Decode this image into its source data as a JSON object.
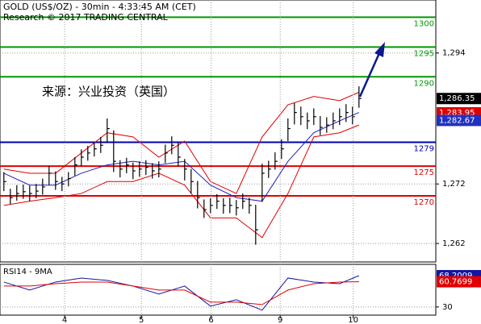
{
  "chart_data": [
    {
      "type": "ohlc",
      "title": "GOLD (US$/OZ) - 30min - 4:33:45 AM (CET)",
      "subtitle": "Research © 2017 TRADING CENTRAL",
      "annotation": "来源：兴业投资（英国）",
      "color": "#000000",
      "xlim": [
        -0.6,
        66.9
      ],
      "ylim": [
        1258.9,
        1302.9
      ],
      "yticks": [
        {
          "value": 1262,
          "label": "1,262"
        },
        {
          "value": 1272,
          "label": "1,272"
        },
        {
          "value": 1294,
          "label": "1,294"
        }
      ],
      "grid": true,
      "x": [
        0,
        1,
        2,
        3,
        4,
        5,
        6,
        7,
        8,
        9,
        10,
        11,
        12,
        13,
        14,
        15,
        16,
        17,
        18,
        19,
        20,
        21,
        22,
        23,
        24,
        25,
        26,
        27,
        28,
        29,
        30,
        31,
        32,
        33,
        34,
        35,
        36,
        37,
        38,
        39,
        40,
        41,
        42,
        43,
        44,
        45,
        46,
        47,
        48,
        49,
        50,
        51,
        52,
        53,
        54,
        55
      ],
      "high": [
        1274.0,
        1271.2,
        1271.8,
        1271.9,
        1271.7,
        1272.0,
        1272.9,
        1275.0,
        1274.1,
        1273.2,
        1274.0,
        1276.5,
        1277.8,
        1278.4,
        1279.0,
        1279.9,
        1283.0,
        1281.0,
        1276.0,
        1276.4,
        1275.6,
        1275.8,
        1276.0,
        1275.5,
        1275.8,
        1278.6,
        1280.0,
        1278.9,
        1276.2,
        1274.5,
        1272.5,
        1269.4,
        1269.6,
        1270.3,
        1269.6,
        1269.7,
        1269.3,
        1270.4,
        1269.7,
        1268.5,
        1275.4,
        1275.9,
        1277.3,
        1279.5,
        1283.0,
        1285.6,
        1285.0,
        1284.0,
        1284.7,
        1283.4,
        1283.2,
        1284.0,
        1284.7,
        1285.4,
        1285.0,
        1288.4
      ],
      "low": [
        1270.8,
        1268.6,
        1269.2,
        1269.5,
        1269.1,
        1269.6,
        1270.2,
        1271.8,
        1271.0,
        1270.8,
        1271.6,
        1273.4,
        1275.0,
        1275.9,
        1276.6,
        1277.2,
        1278.9,
        1274.0,
        1273.1,
        1273.8,
        1272.8,
        1273.2,
        1273.5,
        1272.9,
        1273.1,
        1275.5,
        1277.0,
        1275.0,
        1272.6,
        1270.4,
        1267.9,
        1266.3,
        1267.1,
        1267.8,
        1267.0,
        1267.1,
        1266.7,
        1267.8,
        1267.0,
        1261.8,
        1269.0,
        1273.0,
        1274.4,
        1276.2,
        1279.2,
        1282.0,
        1281.9,
        1281.2,
        1281.9,
        1280.2,
        1280.6,
        1281.2,
        1281.9,
        1282.4,
        1282.0,
        1284.8
      ],
      "close": [
        1272.4,
        1269.7,
        1270.4,
        1270.7,
        1270.4,
        1270.8,
        1271.5,
        1273.8,
        1272.4,
        1272.0,
        1272.9,
        1275.2,
        1276.5,
        1277.2,
        1277.9,
        1278.5,
        1281.3,
        1275.8,
        1274.5,
        1275.2,
        1274.2,
        1274.5,
        1274.8,
        1274.2,
        1274.5,
        1277.2,
        1278.5,
        1276.5,
        1274.5,
        1272.4,
        1269.7,
        1267.7,
        1268.4,
        1269.1,
        1268.4,
        1268.4,
        1268.0,
        1269.1,
        1268.4,
        1264.3,
        1273.8,
        1274.5,
        1275.8,
        1277.9,
        1281.3,
        1284.0,
        1283.3,
        1282.6,
        1283.3,
        1281.5,
        1281.9,
        1282.6,
        1283.3,
        1284.0,
        1283.3,
        1286.35
      ],
      "overlays": [
        {
          "color": "#e00000",
          "x": [
            0,
            4,
            8,
            12,
            16,
            20,
            24,
            28,
            32,
            36,
            40,
            44,
            48,
            52,
            55
          ],
          "values": [
            1274.5,
            1273.8,
            1273.8,
            1277.2,
            1280.6,
            1279.9,
            1276.5,
            1279.2,
            1272.4,
            1270.4,
            1279.9,
            1285.3,
            1286.7,
            1286.0,
            1287.4
          ]
        },
        {
          "color": "#e00000",
          "x": [
            0,
            4,
            8,
            12,
            16,
            20,
            24,
            28,
            32,
            36,
            40,
            44,
            48,
            52,
            55
          ],
          "values": [
            1268.4,
            1269.1,
            1269.7,
            1270.4,
            1272.4,
            1272.4,
            1273.8,
            1271.8,
            1266.3,
            1266.3,
            1263.0,
            1270.4,
            1279.9,
            1280.6,
            1281.9
          ]
        },
        {
          "color": "#2020c0",
          "x": [
            0,
            4,
            8,
            12,
            16,
            20,
            24,
            28,
            32,
            36,
            40,
            44,
            48,
            52,
            55
          ],
          "values": [
            1273.8,
            1271.8,
            1271.8,
            1273.8,
            1275.2,
            1275.8,
            1275.2,
            1275.8,
            1271.8,
            1269.7,
            1269.1,
            1275.8,
            1280.6,
            1282.6,
            1284.0
          ]
        }
      ],
      "levels": [
        {
          "value": 1300,
          "color": "#009900"
        },
        {
          "value": 1295,
          "color": "#009900"
        },
        {
          "value": 1290,
          "color": "#009900"
        },
        {
          "value": 1279,
          "color": "#0000b0"
        },
        {
          "value": 1275,
          "color": "#e00000"
        },
        {
          "value": 1270,
          "color": "#e00000"
        }
      ],
      "price_labels": [
        {
          "value": 1286.35,
          "label": "1,286.35",
          "color": "#000000"
        },
        {
          "value": 1283.95,
          "label": "1,283.95",
          "color": "#e00000"
        },
        {
          "value": 1282.67,
          "label": "1,282.67",
          "color": "#2030c0"
        }
      ]
    },
    {
      "type": "line",
      "title": "RSI14 - 9MA",
      "xlim": [
        -0.6,
        66.9
      ],
      "ylim": [
        20,
        82
      ],
      "yticks": [
        30
      ],
      "xticks": [
        {
          "value": 9.4,
          "label": "4"
        },
        {
          "value": 21.3,
          "label": "5"
        },
        {
          "value": 32.1,
          "label": "6"
        },
        {
          "value": 42.8,
          "label": "9"
        },
        {
          "value": 54.1,
          "label": "10"
        }
      ],
      "series": [
        {
          "color": "#1515a0",
          "x": [
            0,
            4,
            8,
            12,
            16,
            20,
            24,
            28,
            32,
            36,
            40,
            44,
            48,
            52,
            55
          ],
          "values": [
            60.4,
            50.6,
            60.4,
            65.3,
            62.4,
            55.5,
            45.7,
            55.5,
            31.0,
            38.8,
            26.1,
            65.3,
            60.4,
            58.4,
            68.2
          ]
        },
        {
          "color": "#e00000",
          "x": [
            0,
            4,
            8,
            12,
            16,
            20,
            24,
            28,
            32,
            36,
            40,
            44,
            48,
            52,
            55
          ],
          "values": [
            55.5,
            55.5,
            58.4,
            60.4,
            60.4,
            55.5,
            50.6,
            50.6,
            35.9,
            35.9,
            32.9,
            50.6,
            58.4,
            60.4,
            60.8
          ]
        }
      ],
      "price_labels": [
        {
          "value": 68.2009,
          "color": "#1515a0"
        },
        {
          "value": 60.7699,
          "color": "#e00000"
        }
      ]
    }
  ]
}
